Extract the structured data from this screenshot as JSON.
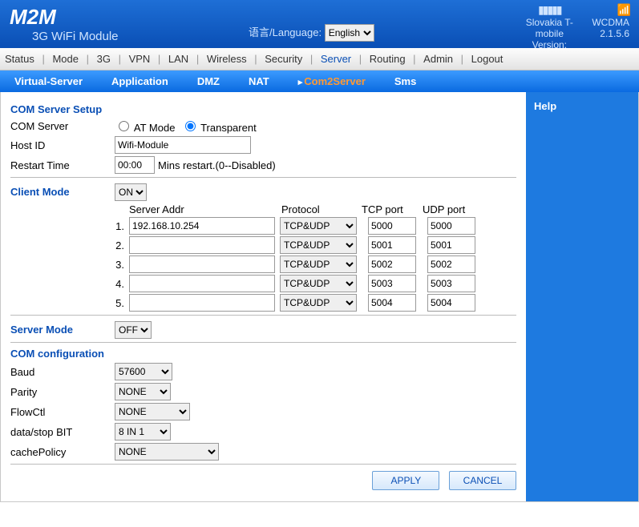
{
  "header": {
    "logo": "M2M",
    "subtitle": "3G WiFi Module",
    "language_label": "语言/Language:",
    "language_value": "English",
    "operator": "Slovakia T-mobile",
    "network": "WCDMA",
    "version_label": "Version:",
    "version": "2.1.5.6"
  },
  "mainnav": [
    "Status",
    "Mode",
    "3G",
    "VPN",
    "LAN",
    "Wireless",
    "Security",
    "Server",
    "Routing",
    "Admin",
    "Logout"
  ],
  "mainnav_active": "Server",
  "subnav": [
    "Virtual-Server",
    "Application",
    "DMZ",
    "NAT",
    "Com2Server",
    "Sms"
  ],
  "subnav_active": "Com2Server",
  "help_title": "Help",
  "sections": {
    "com_setup_title": "COM Server Setup",
    "com_server_label": "COM Server",
    "atmode_label": "AT Mode",
    "transparent_label": "Transparent",
    "hostid_label": "Host ID",
    "hostid_value": "Wifi-Module",
    "restart_label": "Restart Time",
    "restart_value": "00:00",
    "restart_suffix": "Mins restart.(0--Disabled)",
    "client_mode_title": "Client Mode",
    "client_mode_value": "ON",
    "server_addr_h": "Server Addr",
    "protocol_h": "Protocol",
    "tcp_port_h": "TCP port",
    "udp_port_h": "UDP port",
    "servers": [
      {
        "n": "1.",
        "addr": "192.168.10.254",
        "proto": "TCP&UDP",
        "tcp": "5000",
        "udp": "5000"
      },
      {
        "n": "2.",
        "addr": "",
        "proto": "TCP&UDP",
        "tcp": "5001",
        "udp": "5001"
      },
      {
        "n": "3.",
        "addr": "",
        "proto": "TCP&UDP",
        "tcp": "5002",
        "udp": "5002"
      },
      {
        "n": "4.",
        "addr": "",
        "proto": "TCP&UDP",
        "tcp": "5003",
        "udp": "5003"
      },
      {
        "n": "5.",
        "addr": "",
        "proto": "TCP&UDP",
        "tcp": "5004",
        "udp": "5004"
      }
    ],
    "server_mode_title": "Server Mode",
    "server_mode_value": "OFF",
    "com_config_title": "COM configuration",
    "baud_label": "Baud",
    "baud_value": "57600",
    "parity_label": "Parity",
    "parity_value": "NONE",
    "flowctl_label": "FlowCtl",
    "flowctl_value": "NONE",
    "databit_label": "data/stop BIT",
    "databit_value": "8 IN 1",
    "cache_label": "cachePolicy",
    "cache_value": "NONE"
  },
  "buttons": {
    "apply": "APPLY",
    "cancel": "CANCEL"
  }
}
